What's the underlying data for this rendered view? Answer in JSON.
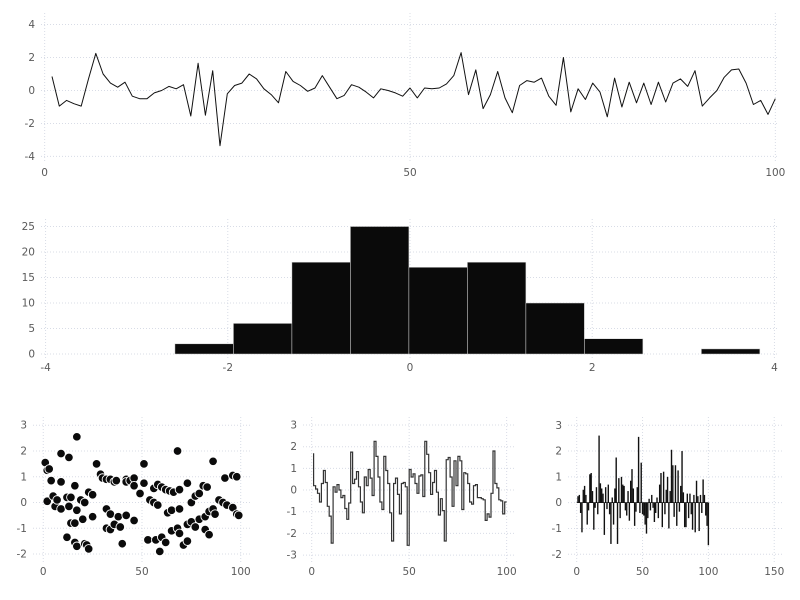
{
  "figure": {
    "background": "#ffffff",
    "ink": "#111111",
    "step_ink": "#333333",
    "grid_color": "#d8dce6",
    "tick_color": "#5a5a5a",
    "marker_edge": "#ffffff"
  },
  "chart_data": [
    {
      "id": "line",
      "type": "line",
      "title": "",
      "xlabel": "",
      "ylabel": "",
      "x_start": 1,
      "x_step": 1,
      "xticks": [
        0,
        50,
        100
      ],
      "yticks": [
        -4,
        -2,
        0,
        2,
        4
      ],
      "xlim": [
        -0.5,
        100.5
      ],
      "ylim": [
        -4.4,
        4.7
      ],
      "grid": true,
      "values": [
        0.85,
        -0.95,
        -0.6,
        -0.8,
        -0.95,
        0.7,
        2.25,
        1.0,
        0.45,
        0.2,
        0.5,
        -0.35,
        -0.5,
        -0.5,
        -0.15,
        0.0,
        0.25,
        0.1,
        0.35,
        -1.55,
        1.65,
        -1.5,
        1.2,
        -3.35,
        -0.2,
        0.3,
        0.45,
        1.0,
        0.7,
        0.1,
        -0.25,
        -0.75,
        1.15,
        0.55,
        0.3,
        -0.05,
        0.15,
        0.9,
        0.2,
        -0.5,
        -0.3,
        0.35,
        0.2,
        -0.1,
        -0.45,
        0.1,
        0.0,
        -0.15,
        -0.35,
        0.15,
        -0.45,
        0.15,
        0.1,
        0.15,
        0.4,
        0.9,
        2.3,
        -0.25,
        1.25,
        -1.1,
        -0.25,
        1.15,
        -0.45,
        -1.35,
        0.3,
        0.6,
        0.5,
        0.75,
        -0.35,
        -0.9,
        2.0,
        -1.3,
        0.1,
        -0.55,
        0.45,
        -0.1,
        -1.6,
        0.75,
        -1.0,
        0.5,
        -0.75,
        0.45,
        -0.85,
        0.5,
        -0.7,
        0.45,
        0.7,
        0.25,
        1.2,
        -0.95,
        -0.45,
        0.0,
        0.8,
        1.25,
        1.3,
        0.45,
        -0.85,
        -0.6,
        -1.45,
        -0.5
      ]
    },
    {
      "id": "histogram",
      "type": "histogram",
      "title": "",
      "xlabel": "",
      "ylabel": "",
      "bin_start": -2.58,
      "bin_width": 0.642,
      "counts": [
        2,
        6,
        18,
        25,
        17,
        18,
        10,
        3,
        0,
        1
      ],
      "xticks": [
        -4,
        -2,
        0,
        2,
        4
      ],
      "yticks": [
        0,
        5,
        10,
        15,
        20,
        25
      ],
      "xlim": [
        -4.05,
        4.05
      ],
      "ylim": [
        -0.78,
        26.47
      ],
      "grid": true
    },
    {
      "id": "scatter",
      "type": "scatter",
      "title": "",
      "xlabel": "",
      "ylabel": "",
      "xticks": [
        0,
        50,
        100
      ],
      "yticks": [
        -2,
        -1,
        0,
        1,
        2,
        3
      ],
      "xlim": [
        -5.2,
        104.7
      ],
      "ylim": [
        -2.31,
        3.32
      ],
      "grid": true,
      "points": [
        [
          1,
          1.55
        ],
        [
          2,
          1.25
        ],
        [
          2,
          0.05
        ],
        [
          3,
          1.3
        ],
        [
          4,
          0.85
        ],
        [
          5,
          0.25
        ],
        [
          6,
          -0.15
        ],
        [
          7,
          0.1
        ],
        [
          9,
          1.9
        ],
        [
          9,
          0.8
        ],
        [
          9,
          -0.25
        ],
        [
          12,
          0.2
        ],
        [
          12,
          -1.35
        ],
        [
          13,
          1.75
        ],
        [
          13,
          -0.15
        ],
        [
          14,
          0.2
        ],
        [
          14,
          -0.8
        ],
        [
          16,
          0.65
        ],
        [
          16,
          -0.8
        ],
        [
          16,
          -1.55
        ],
        [
          17,
          2.55
        ],
        [
          17,
          -0.3
        ],
        [
          17,
          -1.7
        ],
        [
          19,
          0.1
        ],
        [
          20,
          -0.65
        ],
        [
          21,
          0.0
        ],
        [
          21,
          -1.6
        ],
        [
          22,
          -1.65
        ],
        [
          23,
          0.4
        ],
        [
          23,
          -1.8
        ],
        [
          25,
          0.3
        ],
        [
          25,
          -0.55
        ],
        [
          27,
          1.5
        ],
        [
          29,
          1.1
        ],
        [
          30,
          0.95
        ],
        [
          32,
          0.9
        ],
        [
          32,
          -0.25
        ],
        [
          32,
          -1.0
        ],
        [
          34,
          0.9
        ],
        [
          34,
          -0.45
        ],
        [
          34,
          -1.05
        ],
        [
          36,
          0.8
        ],
        [
          36,
          -0.85
        ],
        [
          37,
          0.85
        ],
        [
          38,
          -0.55
        ],
        [
          39,
          -0.95
        ],
        [
          40,
          -1.6
        ],
        [
          42,
          0.9
        ],
        [
          42,
          0.8
        ],
        [
          42,
          -0.5
        ],
        [
          44,
          0.85
        ],
        [
          46,
          0.95
        ],
        [
          46,
          0.65
        ],
        [
          46,
          -0.7
        ],
        [
          49,
          0.35
        ],
        [
          51,
          1.5
        ],
        [
          51,
          0.75
        ],
        [
          53,
          -1.45
        ],
        [
          54,
          0.1
        ],
        [
          56,
          0.55
        ],
        [
          56,
          0.0
        ],
        [
          57,
          -1.45
        ],
        [
          58,
          0.7
        ],
        [
          58,
          -0.1
        ],
        [
          59,
          -1.9
        ],
        [
          60,
          0.6
        ],
        [
          60,
          -1.35
        ],
        [
          62,
          0.5
        ],
        [
          62,
          -1.55
        ],
        [
          63,
          -0.4
        ],
        [
          64,
          0.45
        ],
        [
          65,
          -0.3
        ],
        [
          65,
          -1.1
        ],
        [
          66,
          0.4
        ],
        [
          68,
          2.0
        ],
        [
          68,
          -1.0
        ],
        [
          69,
          0.5
        ],
        [
          69,
          -0.25
        ],
        [
          69,
          -1.2
        ],
        [
          71,
          -1.65
        ],
        [
          73,
          0.75
        ],
        [
          73,
          -0.85
        ],
        [
          73,
          -1.5
        ],
        [
          75,
          0.0
        ],
        [
          75,
          -0.75
        ],
        [
          77,
          0.25
        ],
        [
          77,
          -0.95
        ],
        [
          79,
          0.35
        ],
        [
          79,
          -0.65
        ],
        [
          81,
          0.65
        ],
        [
          82,
          -0.55
        ],
        [
          82,
          -1.05
        ],
        [
          83,
          0.6
        ],
        [
          84,
          -0.35
        ],
        [
          84,
          -1.25
        ],
        [
          86,
          1.6
        ],
        [
          86,
          -0.25
        ],
        [
          87,
          -0.45
        ],
        [
          89,
          0.1
        ],
        [
          91,
          0.0
        ],
        [
          92,
          0.95
        ],
        [
          93,
          -0.1
        ],
        [
          96,
          1.05
        ],
        [
          96,
          -0.2
        ],
        [
          98,
          1.0
        ],
        [
          98,
          -0.45
        ],
        [
          99,
          -0.5
        ]
      ]
    },
    {
      "id": "step",
      "type": "step",
      "title": "",
      "xlabel": "",
      "ylabel": "",
      "x_start": 1,
      "x_step": 1,
      "xticks": [
        0,
        50,
        100
      ],
      "yticks": [
        -3,
        -2,
        -1,
        0,
        1,
        2,
        3
      ],
      "xlim": [
        -4.46,
        104.8
      ],
      "ylim": [
        -3.32,
        3.37
      ],
      "grid": true,
      "values": [
        1.7,
        0.2,
        0.05,
        -0.15,
        -0.55,
        0.3,
        0.9,
        0.35,
        -0.75,
        -1.2,
        -2.45,
        0.15,
        -0.1,
        0.25,
        0.0,
        -0.35,
        -0.25,
        -0.85,
        -1.35,
        -0.6,
        1.75,
        0.3,
        0.5,
        0.85,
        0.15,
        -0.55,
        -1.05,
        0.6,
        0.2,
        0.95,
        0.55,
        -0.25,
        2.25,
        1.55,
        0.6,
        -0.55,
        -0.9,
        1.55,
        0.9,
        0.3,
        -1.05,
        -2.35,
        0.3,
        0.55,
        -0.2,
        -1.1,
        0.3,
        0.35,
        0.15,
        -2.55,
        0.95,
        0.6,
        0.75,
        0.3,
        -0.15,
        0.65,
        0.7,
        -0.3,
        2.25,
        1.65,
        0.8,
        -0.2,
        0.35,
        0.9,
        -0.1,
        -1.15,
        -0.4,
        -0.95,
        -2.35,
        1.4,
        1.5,
        0.6,
        -0.75,
        1.35,
        0.2,
        1.55,
        1.35,
        -0.9,
        0.8,
        0.75,
        0.3,
        -0.55,
        -0.65,
        0.2,
        0.25,
        -0.35,
        -0.35,
        -0.4,
        -0.45,
        -1.4,
        -1.1,
        -1.25,
        -0.15,
        1.8,
        0.3,
        0.1,
        -0.45,
        -0.5,
        -1.1,
        -0.55
      ]
    },
    {
      "id": "stem",
      "type": "stem",
      "title": "",
      "xlabel": "",
      "ylabel": "",
      "x_start": 1,
      "x_step": 1,
      "xticks": [
        0,
        50,
        100,
        150
      ],
      "yticks": [
        -2,
        -1,
        0,
        1,
        2,
        3
      ],
      "xlim": [
        -6.6,
        155.9
      ],
      "ylim": [
        -2.3,
        3.32
      ],
      "grid": true,
      "values": [
        0.25,
        0.3,
        -0.4,
        -1.15,
        0.5,
        0.65,
        0.3,
        -0.85,
        -0.3,
        1.1,
        1.15,
        0.45,
        -1.05,
        -0.2,
        0.6,
        -0.45,
        2.6,
        0.75,
        0.55,
        0.35,
        -1.25,
        0.6,
        -0.25,
        0.7,
        -0.45,
        -1.6,
        0.2,
        -0.85,
        0.55,
        1.75,
        -1.6,
        0.95,
        -0.6,
        1.0,
        0.7,
        0.65,
        -0.3,
        -0.5,
        0.45,
        -0.7,
        0.85,
        1.3,
        0.55,
        -0.9,
        -0.35,
        0.6,
        2.55,
        -0.4,
        1.55,
        -0.45,
        -0.5,
        -0.85,
        -1.2,
        -0.6,
        0.15,
        -0.3,
        0.3,
        -0.2,
        -0.75,
        -0.4,
        0.2,
        -0.6,
        0.7,
        1.15,
        -0.95,
        1.2,
        -0.45,
        0.5,
        1.0,
        -1.0,
        0.45,
        2.05,
        1.45,
        -0.55,
        1.45,
        -0.9,
        1.25,
        -0.35,
        0.65,
        2.0,
        0.4,
        -0.95,
        -0.95,
        0.35,
        -0.6,
        0.35,
        -0.45,
        -1.05,
        0.3,
        -1.15,
        0.85,
        0.25,
        -1.1,
        0.3,
        -0.4,
        0.9,
        0.3,
        -0.5,
        -0.9,
        -1.65
      ]
    }
  ]
}
